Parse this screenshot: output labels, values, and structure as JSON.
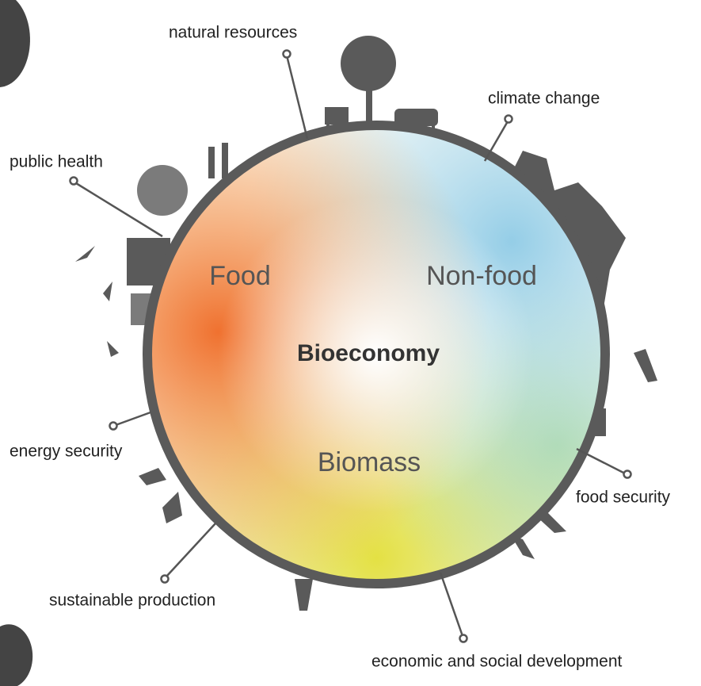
{
  "center": {
    "title": "Bioeconomy",
    "sectors": [
      "Food",
      "Non-food",
      "Biomass"
    ]
  },
  "labels": [
    "natural resources",
    "climate change",
    "public health",
    "energy security",
    "food security",
    "sustainable production",
    "economic and social development"
  ]
}
